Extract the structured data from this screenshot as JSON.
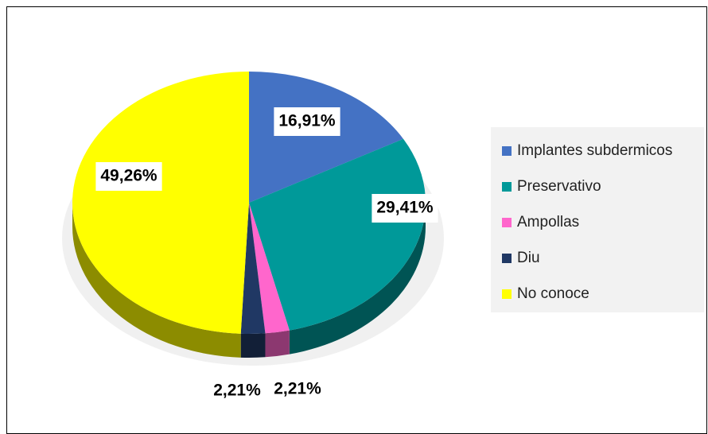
{
  "chart_data": {
    "type": "pie",
    "categories": [
      "Implantes subdermicos",
      "Preservativo",
      "Ampollas",
      "Diu",
      "No conoce"
    ],
    "values": [
      16.91,
      29.41,
      2.21,
      2.21,
      49.26
    ],
    "value_labels": [
      "16,91%",
      "29,41%",
      "2,21%",
      "2,21%",
      "49,26%"
    ],
    "colors": [
      "#4472c4",
      "#009999",
      "#ff66cc",
      "#203864",
      "#ffff00"
    ],
    "legend": "right"
  }
}
